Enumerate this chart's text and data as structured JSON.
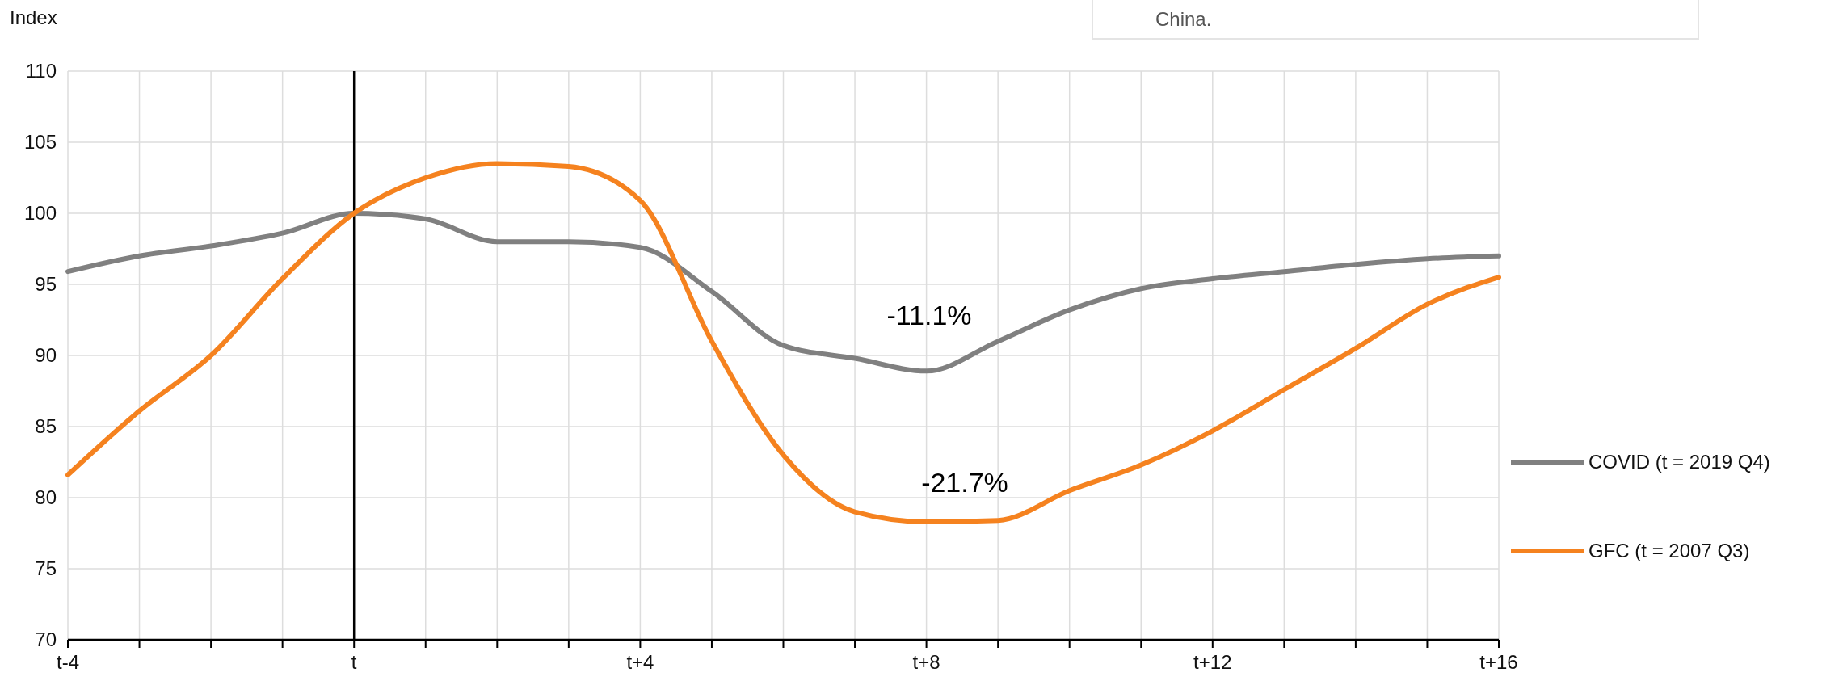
{
  "chart_data": {
    "type": "line",
    "ylabel": "Index",
    "categories": [
      "t-4",
      null,
      null,
      null,
      "t",
      null,
      null,
      null,
      "t+4",
      null,
      null,
      null,
      "t+8",
      null,
      null,
      null,
      "t+12",
      null,
      null,
      null,
      "t+16"
    ],
    "series": [
      {
        "name": "COVID (t = 2019 Q4)",
        "color": "#808080",
        "values": [
          95.9,
          97.0,
          97.7,
          98.6,
          100.0,
          99.6,
          98.0,
          98.0,
          97.6,
          94.5,
          90.7,
          89.8,
          88.9,
          91.0,
          93.2,
          94.7,
          95.4,
          95.9,
          96.4,
          96.8,
          97.0
        ]
      },
      {
        "name": "GFC (t = 2007 Q3)",
        "color": "#f5821f",
        "values": [
          81.6,
          86.1,
          90.0,
          95.4,
          100.0,
          102.5,
          103.5,
          103.3,
          100.9,
          91.0,
          83.0,
          79.0,
          78.3,
          78.4,
          80.5,
          82.3,
          84.7,
          87.6,
          90.5,
          93.6,
          95.5
        ]
      }
    ],
    "ylim": [
      70,
      110
    ],
    "yticks": [
      70,
      75,
      80,
      85,
      90,
      95,
      100,
      105,
      110
    ],
    "grid": true,
    "legend": "right",
    "line_style": "solid",
    "ref_lines": [
      {
        "axis": "x",
        "value": "t",
        "color": "#000000"
      }
    ],
    "annotations": [
      "-11.1%",
      "-21.7%",
      "China."
    ]
  }
}
